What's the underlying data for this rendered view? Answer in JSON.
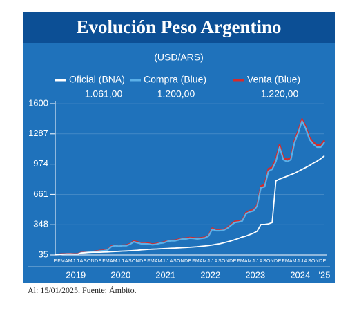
{
  "chart_data": {
    "type": "line",
    "title": "Evolución Peso Argentino",
    "subtitle": "(USD/ARS)",
    "footer": "Al: 15/01/2025. Fuente: Ámbito.",
    "categories": [
      "E",
      "F",
      "M",
      "A",
      "M",
      "J",
      "J",
      "A",
      "S",
      "O",
      "N",
      "D",
      "E",
      "F",
      "M",
      "A",
      "M",
      "J",
      "J",
      "A",
      "S",
      "O",
      "N",
      "D",
      "E",
      "F",
      "M",
      "A",
      "M",
      "J",
      "J",
      "A",
      "S",
      "O",
      "N",
      "D",
      "E",
      "F",
      "M",
      "A",
      "M",
      "J",
      "J",
      "A",
      "S",
      "O",
      "N",
      "D",
      "E",
      "F",
      "M",
      "A",
      "M",
      "J",
      "J",
      "A",
      "S",
      "O",
      "N",
      "D",
      "E",
      "F",
      "M",
      "A",
      "M",
      "J",
      "J",
      "A",
      "S",
      "O",
      "N",
      "D",
      "E"
    ],
    "year_labels": [
      "2019",
      "2020",
      "2021",
      "2022",
      "2023",
      "2024",
      "'25"
    ],
    "series": [
      {
        "name": "Venta (Blue)",
        "color": "#d62a2a",
        "current": "1.220,00",
        "values": [
          39,
          41,
          45,
          45,
          47,
          45,
          45,
          60,
          63,
          66,
          68,
          73,
          79,
          81,
          88,
          125,
          135,
          130,
          135,
          135,
          150,
          178,
          168,
          158,
          157,
          154,
          145,
          151,
          161,
          166,
          180,
          185,
          185,
          196,
          206,
          208,
          214,
          211,
          206,
          211,
          216,
          236,
          310,
          292,
          291,
          296,
          318,
          350,
          380,
          385,
          395,
          470,
          492,
          500,
          550,
          745,
          760,
          925,
          940,
          1025,
          1175,
          1040,
          1020,
          1040,
          1220,
          1320,
          1440,
          1360,
          1250,
          1200,
          1170,
          1170,
          1220
        ]
      },
      {
        "name": "Compra (Blue)",
        "color": "#5bb0e8",
        "current": "1.200,00",
        "values": [
          37,
          39,
          43,
          43,
          45,
          43,
          43,
          57,
          60,
          63,
          65,
          70,
          76,
          78,
          85,
          120,
          130,
          125,
          130,
          130,
          145,
          170,
          160,
          150,
          150,
          148,
          140,
          145,
          155,
          160,
          175,
          180,
          180,
          190,
          200,
          200,
          208,
          205,
          200,
          205,
          210,
          230,
          300,
          285,
          285,
          290,
          310,
          340,
          370,
          375,
          385,
          460,
          480,
          490,
          540,
          730,
          740,
          900,
          920,
          1000,
          1150,
          1020,
          1000,
          1020,
          1200,
          1300,
          1420,
          1340,
          1230,
          1180,
          1150,
          1150,
          1200
        ]
      },
      {
        "name": "Oficial (BNA)",
        "color": "#ffffff",
        "current": "1.061,00",
        "values": [
          38,
          39,
          42,
          44,
          45,
          43,
          43,
          56,
          58,
          61,
          63,
          63,
          63,
          64,
          66,
          68,
          70,
          72,
          74,
          76,
          78,
          80,
          83,
          87,
          90,
          92,
          94,
          96,
          98,
          100,
          102,
          104,
          106,
          108,
          110,
          112,
          114,
          117,
          120,
          124,
          128,
          132,
          138,
          144,
          150,
          160,
          170,
          180,
          192,
          205,
          220,
          230,
          245,
          260,
          280,
          350,
          350,
          355,
          370,
          800,
          820,
          835,
          850,
          865,
          880,
          900,
          920,
          940,
          960,
          985,
          1005,
          1030,
          1061
        ]
      }
    ],
    "ylim": [
      35,
      1600
    ],
    "yticks": [
      35,
      348,
      661,
      974,
      1287,
      1600
    ],
    "grid": true
  }
}
